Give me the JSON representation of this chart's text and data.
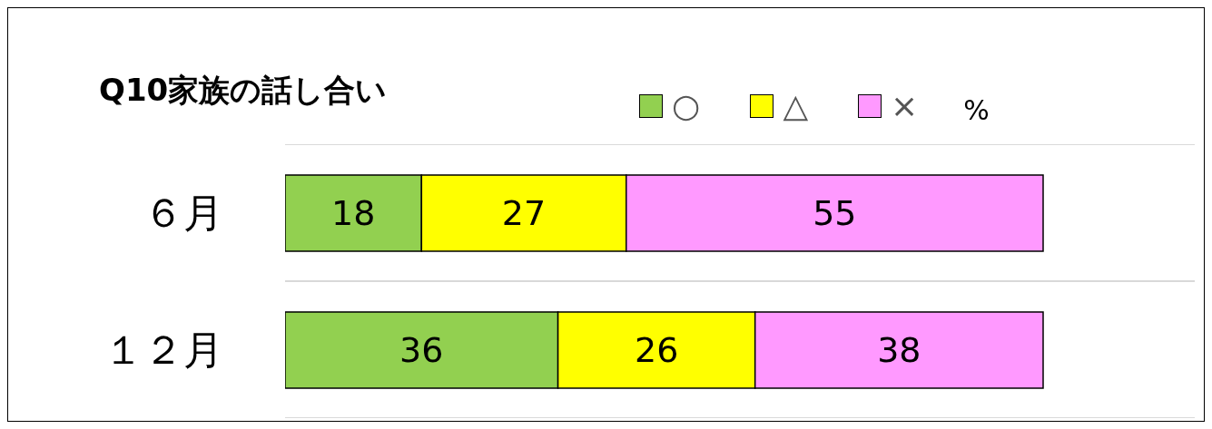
{
  "chart_data": {
    "type": "bar",
    "orientation": "horizontal",
    "stacked": true,
    "title": "Q10家族の話し合い",
    "categories": [
      "６月",
      "１２月"
    ],
    "series": [
      {
        "name": "○",
        "color": "#92d050",
        "values": [
          18,
          36
        ]
      },
      {
        "name": "△",
        "color": "#ffff00",
        "values": [
          27,
          26
        ]
      },
      {
        "name": "×",
        "color": "#ff99ff",
        "values": [
          55,
          38
        ]
      }
    ],
    "xlim": [
      0,
      120
    ],
    "tick_labels": "y",
    "data_labels": true,
    "grid": "y",
    "legend": "top",
    "annotations": [
      "%"
    ]
  }
}
